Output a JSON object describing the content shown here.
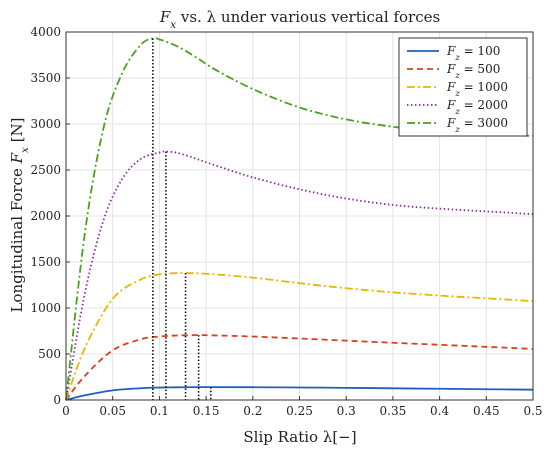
{
  "chart_data": {
    "type": "line",
    "title": "F_x vs. λ under various vertical forces",
    "xlabel": "Slip Ratio λ[−]",
    "ylabel": "Longitudinal Force F_x [N]",
    "xlim": [
      0,
      0.5
    ],
    "ylim": [
      0,
      4000
    ],
    "xticks": [
      "0",
      "0.05",
      "0.1",
      "0.15",
      "0.2",
      "0.25",
      "0.3",
      "0.35",
      "0.4",
      "0.45",
      "0.5"
    ],
    "yticks": [
      "0",
      "500",
      "1000",
      "1500",
      "2000",
      "2500",
      "3000",
      "3500",
      "4000"
    ],
    "grid": true,
    "legend_position": "top-right",
    "series": [
      {
        "name": "F_z = 100",
        "color": "#1f5fbf",
        "dash": "solid",
        "x": [
          0,
          0.02,
          0.05,
          0.08,
          0.1,
          0.12,
          0.14,
          0.155,
          0.2,
          0.25,
          0.3,
          0.35,
          0.4,
          0.45,
          0.5
        ],
        "y": [
          0,
          50,
          105,
          128,
          135,
          138,
          140,
          140,
          139,
          136,
          132,
          127,
          122,
          117,
          112
        ]
      },
      {
        "name": "F_z = 500",
        "color": "#d9411e",
        "dash": "dash",
        "x": [
          0,
          0.02,
          0.05,
          0.08,
          0.1,
          0.12,
          0.142,
          0.16,
          0.2,
          0.25,
          0.3,
          0.35,
          0.4,
          0.45,
          0.5
        ],
        "y": [
          0,
          260,
          540,
          660,
          690,
          702,
          705,
          702,
          690,
          668,
          645,
          622,
          600,
          578,
          555
        ]
      },
      {
        "name": "F_z = 1000",
        "color": "#e8b800",
        "dash": "dashdot",
        "x": [
          0,
          0.02,
          0.05,
          0.08,
          0.1,
          0.115,
          0.128,
          0.14,
          0.16,
          0.2,
          0.25,
          0.3,
          0.35,
          0.4,
          0.45,
          0.5
        ],
        "y": [
          0,
          560,
          1100,
          1310,
          1365,
          1378,
          1380,
          1377,
          1365,
          1330,
          1270,
          1215,
          1170,
          1135,
          1105,
          1075
        ]
      },
      {
        "name": "F_z = 2000",
        "color": "#8b2aa6",
        "dash": "dot",
        "x": [
          0,
          0.02,
          0.04,
          0.06,
          0.08,
          0.1,
          0.107,
          0.12,
          0.14,
          0.16,
          0.2,
          0.25,
          0.3,
          0.35,
          0.4,
          0.45,
          0.5
        ],
        "y": [
          0,
          1150,
          1950,
          2400,
          2620,
          2690,
          2700,
          2685,
          2620,
          2550,
          2420,
          2290,
          2190,
          2120,
          2080,
          2050,
          2020
        ]
      },
      {
        "name": "F_z = 3000",
        "color": "#4aa021",
        "dash": "dashdot",
        "x": [
          0,
          0.02,
          0.04,
          0.06,
          0.08,
          0.093,
          0.1,
          0.12,
          0.14,
          0.16,
          0.2,
          0.25,
          0.3,
          0.35,
          0.4,
          0.45,
          0.5
        ],
        "y": [
          0,
          1800,
          2950,
          3550,
          3860,
          3930,
          3920,
          3840,
          3720,
          3590,
          3380,
          3180,
          3050,
          2970,
          2920,
          2890,
          2870
        ]
      }
    ],
    "peak_markers": [
      {
        "x": 0.093,
        "y": 3930
      },
      {
        "x": 0.107,
        "y": 2700
      },
      {
        "x": 0.128,
        "y": 1380
      },
      {
        "x": 0.142,
        "y": 705
      },
      {
        "x": 0.155,
        "y": 140
      }
    ]
  }
}
